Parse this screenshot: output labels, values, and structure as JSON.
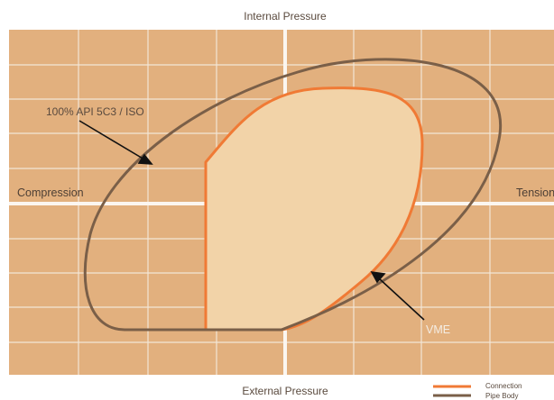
{
  "diagram": {
    "axes": {
      "top": "Internal Pressure",
      "bottom": "External Pressure",
      "left": "Compression",
      "right": "Tension"
    },
    "annotations": {
      "api": "100% API 5C3 / ISO",
      "vme": "VME"
    },
    "legend": [
      {
        "label": "Connection",
        "color": "#f07a35"
      },
      {
        "label": "Pipe Body",
        "color": "#7a5f48"
      }
    ],
    "colors": {
      "background": "#e2b07e",
      "grid": "#f3e6d6",
      "connection_fill": "#f2d3a8",
      "connection_stroke": "#f07a35",
      "pipe_body_stroke": "#7a5f48"
    }
  }
}
